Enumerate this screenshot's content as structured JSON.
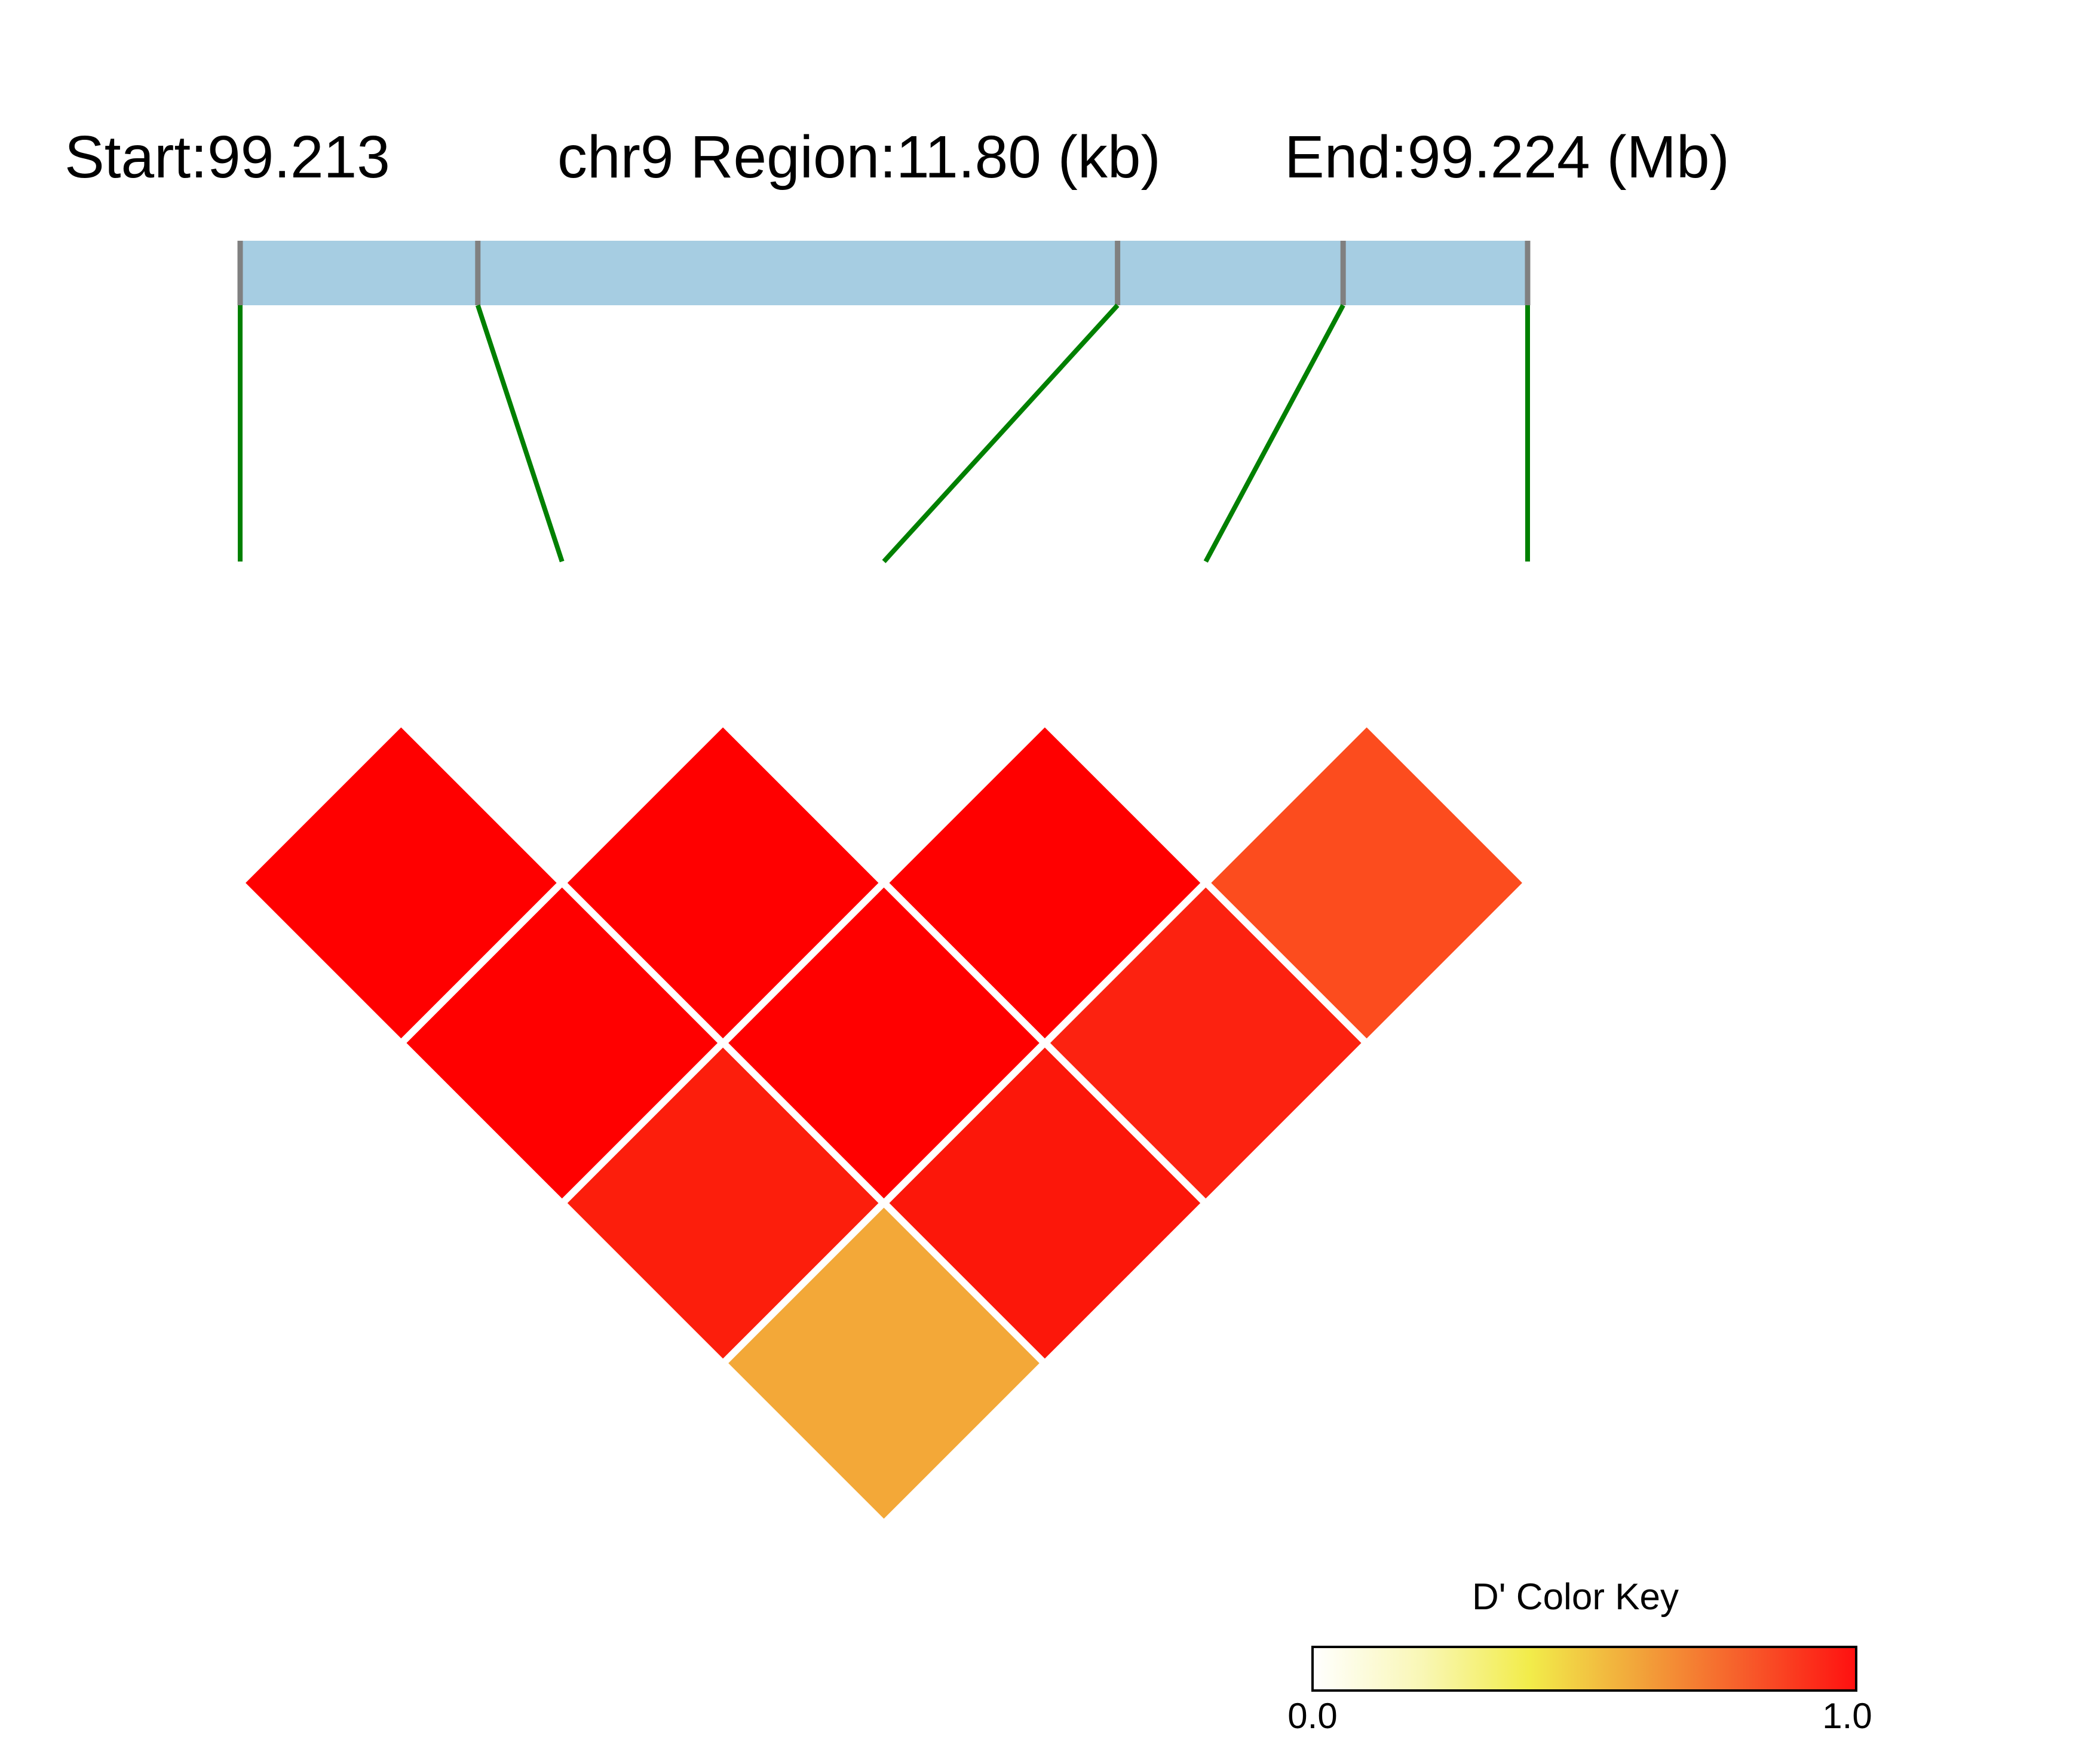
{
  "header": {
    "start_label": "Start:99.213",
    "region_label": "chr9 Region:11.80 (kb)",
    "end_label": "End:99.224 (Mb)"
  },
  "colors": {
    "region_bar": "#a6cde2",
    "snp_tick": "#808080",
    "connector": "#008000",
    "cell_border": "#ffffff"
  },
  "chart_data": {
    "type": "heatmap",
    "title": "",
    "chromosome": "chr9",
    "region_start_mb": 99.213,
    "region_end_mb": 99.224,
    "region_length_kb": 11.8,
    "snp_count": 5,
    "snp_relative_positions": [
      0.0,
      0.1846,
      0.6815,
      0.8567,
      1.0
    ],
    "ld_matrix": [
      {
        "i": 1,
        "j": 2,
        "d_prime": 1.0,
        "color": "#ff0000"
      },
      {
        "i": 2,
        "j": 3,
        "d_prime": 1.0,
        "color": "#ff0000"
      },
      {
        "i": 3,
        "j": 4,
        "d_prime": 1.0,
        "color": "#ff0000"
      },
      {
        "i": 4,
        "j": 5,
        "d_prime": 0.86,
        "color": "#fc4c1e"
      },
      {
        "i": 1,
        "j": 3,
        "d_prime": 1.0,
        "color": "#ff0000"
      },
      {
        "i": 2,
        "j": 4,
        "d_prime": 1.0,
        "color": "#ff0000"
      },
      {
        "i": 3,
        "j": 5,
        "d_prime": 0.95,
        "color": "#fc2210"
      },
      {
        "i": 1,
        "j": 4,
        "d_prime": 0.95,
        "color": "#fc1e0c"
      },
      {
        "i": 2,
        "j": 5,
        "d_prime": 0.96,
        "color": "#fc170a"
      },
      {
        "i": 1,
        "j": 5,
        "d_prime": 0.65,
        "color": "#f3a838"
      }
    ],
    "color_key": {
      "title": "D' Color Key",
      "min_label": "0.0",
      "max_label": "1.0",
      "stops": [
        "#ffffff",
        "#f9f7b6",
        "#f2ec4a",
        "#f2a43a",
        "#f75a2a",
        "#ff1010"
      ]
    }
  }
}
